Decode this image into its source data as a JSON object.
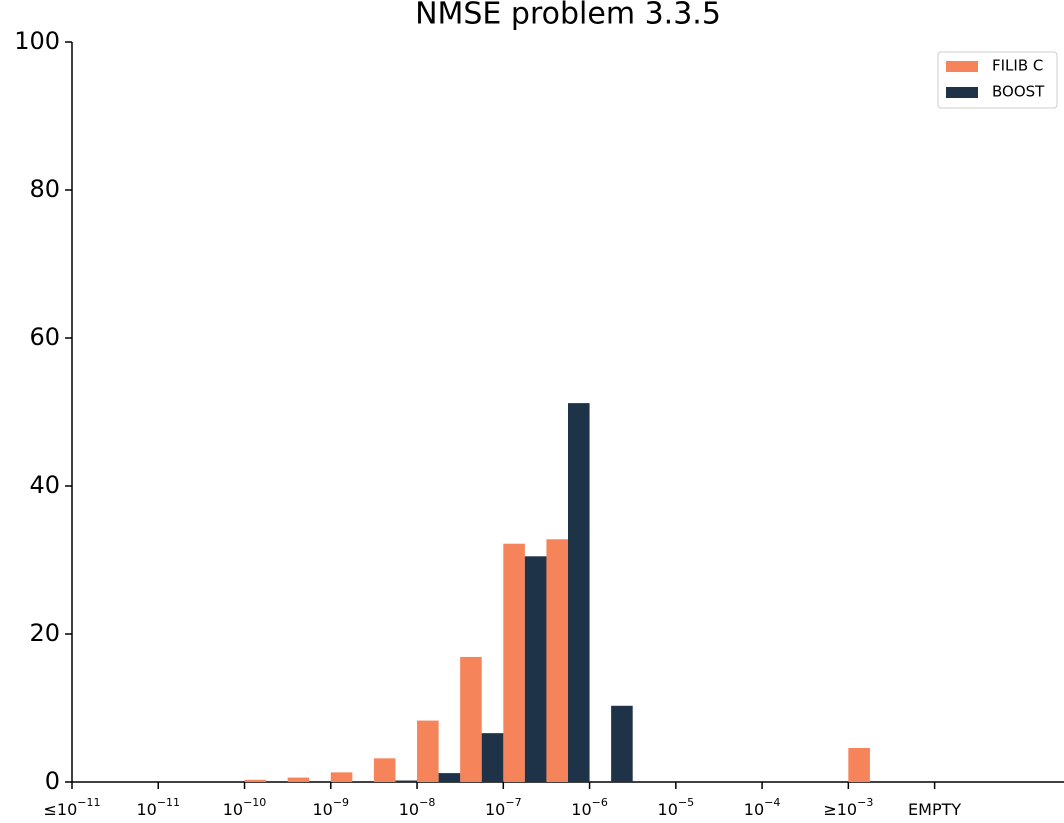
{
  "chart_data": {
    "type": "histogram",
    "title": "NMSE problem 3.3.5",
    "bins": [
      0,
      0.5,
      1,
      1.5,
      2,
      2.5,
      3,
      3.5,
      4,
      4.5,
      5,
      5.5,
      6,
      6.5,
      7,
      7.5,
      8,
      8.5,
      9,
      9.5,
      10,
      10.5,
      11,
      11.5
    ],
    "series": [
      {
        "name": "FILIB C",
        "color": "#f5845a",
        "values": [
          0,
          0,
          0,
          0,
          0.3,
          0.6,
          1.3,
          3.2,
          8.3,
          16.9,
          32.2,
          32.8,
          0,
          0,
          0,
          0,
          0,
          0,
          4.6,
          0,
          0,
          0,
          0
        ]
      },
      {
        "name": "BOOST",
        "color": "#1e3248",
        "values": [
          0,
          0,
          0,
          0,
          0,
          0,
          0,
          0.2,
          1.2,
          6.6,
          30.5,
          51.2,
          10.3,
          0,
          0,
          0,
          0,
          0,
          0,
          0,
          0,
          0,
          0
        ]
      }
    ],
    "xlim": [
      0,
      11.5
    ],
    "xticks": [
      {
        "value": 0,
        "label": "≤10",
        "sup": "−11"
      },
      {
        "value": 1,
        "label": "10",
        "sup": "−11"
      },
      {
        "value": 2,
        "label": "10",
        "sup": "−10"
      },
      {
        "value": 3,
        "label": "10",
        "sup": "−9"
      },
      {
        "value": 4,
        "label": "10",
        "sup": "−8"
      },
      {
        "value": 5,
        "label": "10",
        "sup": "−7"
      },
      {
        "value": 6,
        "label": "10",
        "sup": "−6"
      },
      {
        "value": 7,
        "label": "10",
        "sup": "−5"
      },
      {
        "value": 8,
        "label": "10",
        "sup": "−4"
      },
      {
        "value": 9,
        "label": "≥10",
        "sup": "−3"
      },
      {
        "value": 10,
        "label": "EMPTY"
      }
    ],
    "ylim": [
      0,
      100
    ],
    "yticks": [
      0,
      20,
      40,
      60,
      80,
      100
    ],
    "legend": "upper right"
  }
}
